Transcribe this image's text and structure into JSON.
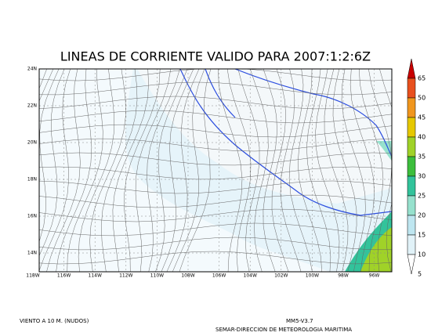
{
  "title": "LINEAS DE CORRIENTE VALIDO PARA 2007:1:2:6Z",
  "lat_labels": [
    "24N",
    "22N",
    "20N",
    "18N",
    "16N",
    "14N"
  ],
  "lon_labels": [
    "118W",
    "116W",
    "114W",
    "112W",
    "110W",
    "108W",
    "106W",
    "104W",
    "102W",
    "100W",
    "98W",
    "96W"
  ],
  "colorbar": {
    "levels": [
      65,
      50,
      45,
      40,
      35,
      30,
      25,
      20,
      15,
      10,
      5
    ],
    "colors": [
      "#c80000",
      "#e8501e",
      "#f0961e",
      "#e6c800",
      "#a0d228",
      "#3cbe3c",
      "#32c39b",
      "#96e1cd",
      "#bee6f0",
      "#e1f2f8",
      "#ffffff"
    ]
  },
  "footer": {
    "left": "VIENTO A 10 M. (NUDOS)",
    "model": "MM5-V3.7",
    "agency": "SEMAR-DIRECCION DE METEOROLOGIA MARITIMA"
  }
}
